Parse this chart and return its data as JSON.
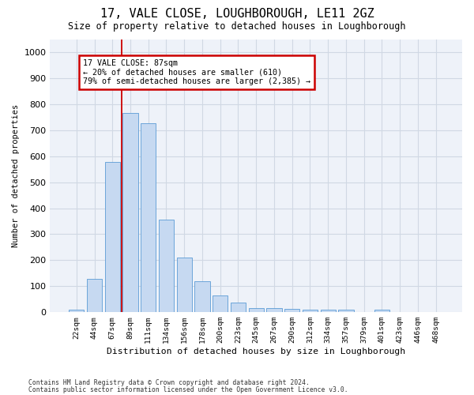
{
  "title": "17, VALE CLOSE, LOUGHBOROUGH, LE11 2GZ",
  "subtitle": "Size of property relative to detached houses in Loughborough",
  "xlabel": "Distribution of detached houses by size in Loughborough",
  "ylabel": "Number of detached properties",
  "bar_labels": [
    "22sqm",
    "44sqm",
    "67sqm",
    "89sqm",
    "111sqm",
    "134sqm",
    "156sqm",
    "178sqm",
    "200sqm",
    "223sqm",
    "245sqm",
    "267sqm",
    "290sqm",
    "312sqm",
    "334sqm",
    "357sqm",
    "379sqm",
    "401sqm",
    "423sqm",
    "446sqm",
    "468sqm"
  ],
  "bar_values": [
    10,
    128,
    578,
    767,
    727,
    357,
    210,
    120,
    63,
    38,
    15,
    15,
    12,
    10,
    8,
    8,
    0,
    10,
    0,
    0,
    0
  ],
  "bar_color": "#c6d9f1",
  "bar_edge_color": "#5b9bd5",
  "grid_color": "#d0d8e4",
  "background_color": "#eef2f9",
  "property_bar_index": 3,
  "annotation_text_line1": "17 VALE CLOSE: 87sqm",
  "annotation_text_line2": "← 20% of detached houses are smaller (610)",
  "annotation_text_line3": "79% of semi-detached houses are larger (2,385) →",
  "annotation_box_facecolor": "#ffffff",
  "annotation_border_color": "#cc0000",
  "vline_color": "#cc0000",
  "footer_line1": "Contains HM Land Registry data © Crown copyright and database right 2024.",
  "footer_line2": "Contains public sector information licensed under the Open Government Licence v3.0.",
  "ylim_max": 1050,
  "yticks": [
    0,
    100,
    200,
    300,
    400,
    500,
    600,
    700,
    800,
    900,
    1000
  ]
}
